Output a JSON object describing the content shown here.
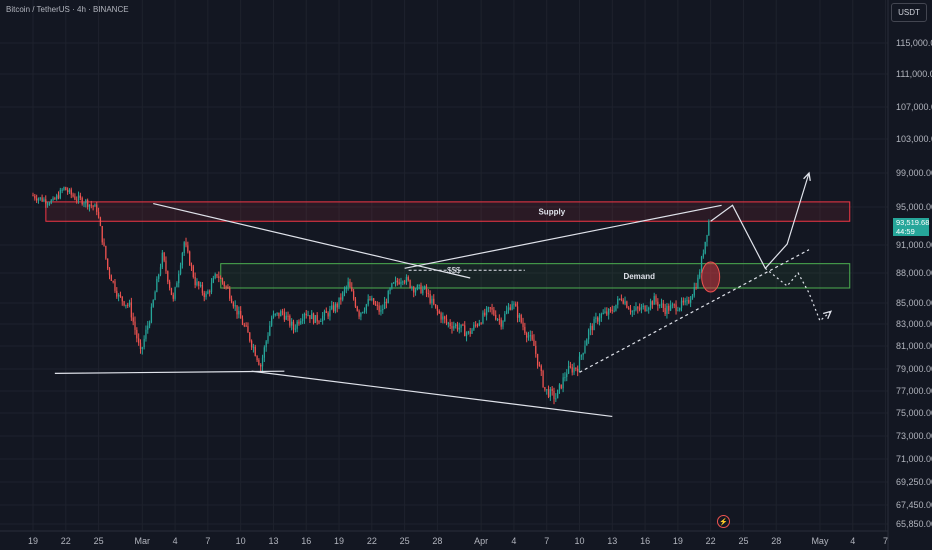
{
  "header": {
    "title": "Bitcoin / TetherUS · 4h · BINANCE"
  },
  "toolbar": {
    "currency_label": "USDT"
  },
  "last_price": {
    "value": "93,519.68",
    "countdown": "44:59"
  },
  "colors": {
    "background": "#131722",
    "up": "#26a69a",
    "down": "#ef5350",
    "supply": "#f23645",
    "demand": "#4caf50",
    "drawing": "#e0e3eb",
    "axis_text": "#b2b5be"
  },
  "icons": {
    "alert": "flash-icon"
  },
  "chart_data": {
    "type": "candlestick",
    "title": "Bitcoin / TetherUS · 4h · BINANCE",
    "y_axis": {
      "scale": "linear",
      "ylim": [
        65000,
        118000
      ],
      "ticks": [
        "115,000.00",
        "111,000.00",
        "107,000.00",
        "103,000.00",
        "99,000.00",
        "95,000.00",
        "91,000.00",
        "88,000.00",
        "85,000.00",
        "83,000.00",
        "81,000.00",
        "79,000.00",
        "77,000.00",
        "75,000.00",
        "73,000.00",
        "71,000.00",
        "69,250.00",
        "67,450.00",
        "65,850.00"
      ],
      "tick_values": [
        115000,
        111000,
        107000,
        103000,
        99000,
        95000,
        91000,
        88000,
        85000,
        83000,
        81000,
        79000,
        77000,
        75000,
        73000,
        71000,
        69250,
        67450,
        65850
      ]
    },
    "x_axis": {
      "xlim": [
        -1,
        81
      ],
      "ticks": [
        "19",
        "22",
        "25",
        "Mar",
        "4",
        "7",
        "10",
        "13",
        "16",
        "19",
        "22",
        "25",
        "28",
        "Apr",
        "4",
        "7",
        "10",
        "13",
        "16",
        "19",
        "22",
        "25",
        "28",
        "May",
        "4",
        "7"
      ],
      "tick_days": [
        0,
        3,
        6,
        10,
        13,
        16,
        19,
        22,
        25,
        28,
        31,
        34,
        37,
        41,
        44,
        47,
        50,
        53,
        56,
        59,
        62,
        65,
        68,
        72,
        75,
        78
      ]
    },
    "price_path": [
      [
        0,
        96400
      ],
      [
        1,
        95900
      ],
      [
        2,
        95600
      ],
      [
        3,
        97200
      ],
      [
        4,
        96100
      ],
      [
        5,
        95600
      ],
      [
        6,
        94800
      ],
      [
        7,
        88500
      ],
      [
        8,
        85600
      ],
      [
        9,
        84700
      ],
      [
        10,
        80300
      ],
      [
        11,
        84200
      ],
      [
        12,
        89800
      ],
      [
        13,
        85200
      ],
      [
        14,
        91300
      ],
      [
        15,
        87100
      ],
      [
        16,
        85700
      ],
      [
        17,
        87900
      ],
      [
        18,
        86300
      ],
      [
        19,
        83800
      ],
      [
        20,
        81700
      ],
      [
        21,
        79300
      ],
      [
        22,
        83600
      ],
      [
        23,
        84100
      ],
      [
        24,
        82600
      ],
      [
        25,
        84200
      ],
      [
        26,
        83400
      ],
      [
        27,
        83900
      ],
      [
        28,
        84800
      ],
      [
        29,
        86900
      ],
      [
        30,
        84000
      ],
      [
        31,
        85300
      ],
      [
        32,
        84100
      ],
      [
        33,
        86600
      ],
      [
        34,
        87600
      ],
      [
        35,
        86500
      ],
      [
        36,
        86300
      ],
      [
        37,
        84400
      ],
      [
        38,
        83100
      ],
      [
        39,
        82800
      ],
      [
        40,
        82100
      ],
      [
        41,
        83300
      ],
      [
        42,
        84400
      ],
      [
        43,
        83200
      ],
      [
        44,
        85100
      ],
      [
        45,
        82800
      ],
      [
        46,
        81000
      ],
      [
        47,
        77100
      ],
      [
        48,
        76400
      ],
      [
        49,
        78800
      ],
      [
        50,
        79200
      ],
      [
        51,
        82300
      ],
      [
        52,
        83800
      ],
      [
        53,
        84100
      ],
      [
        54,
        85600
      ],
      [
        55,
        84200
      ],
      [
        56,
        84500
      ],
      [
        57,
        85300
      ],
      [
        58,
        84400
      ],
      [
        59,
        84700
      ],
      [
        60,
        84900
      ],
      [
        61,
        87300
      ],
      [
        62,
        93500
      ]
    ],
    "zones": [
      {
        "label": "Supply",
        "y_from": 93500,
        "y_to": 95600,
        "x_from": 2,
        "x_to": 75
      },
      {
        "label": "Demand",
        "y_from": 86500,
        "y_to": 89000,
        "x_from": 18,
        "x_to": 75
      }
    ],
    "annotations": [
      {
        "text": "$$$"
      }
    ],
    "drawings": {
      "support_line": [
        [
          2,
          78600
        ],
        [
          23,
          78800
        ]
      ],
      "upper_trendline_1": [
        [
          11,
          95400
        ],
        [
          40,
          87500
        ]
      ],
      "lower_trendline": [
        [
          20,
          78800
        ],
        [
          53,
          74700
        ]
      ],
      "wedge_top": [
        [
          34,
          88500
        ],
        [
          63,
          95200
        ]
      ],
      "rising_dashed": [
        [
          50,
          78700
        ],
        [
          71,
          90500
        ]
      ],
      "projection_path": [
        [
          62,
          93500
        ],
        [
          64,
          95200
        ],
        [
          67,
          88500
        ],
        [
          69,
          91100
        ],
        [
          71,
          99000
        ]
      ],
      "bearish_projection_dotted": [
        [
          67,
          88500
        ],
        [
          69,
          86700
        ],
        [
          70,
          88000
        ],
        [
          71,
          86000
        ],
        [
          72,
          83300
        ],
        [
          73,
          84200
        ]
      ],
      "ellipse_marker": [
        62,
        87300
      ]
    }
  }
}
